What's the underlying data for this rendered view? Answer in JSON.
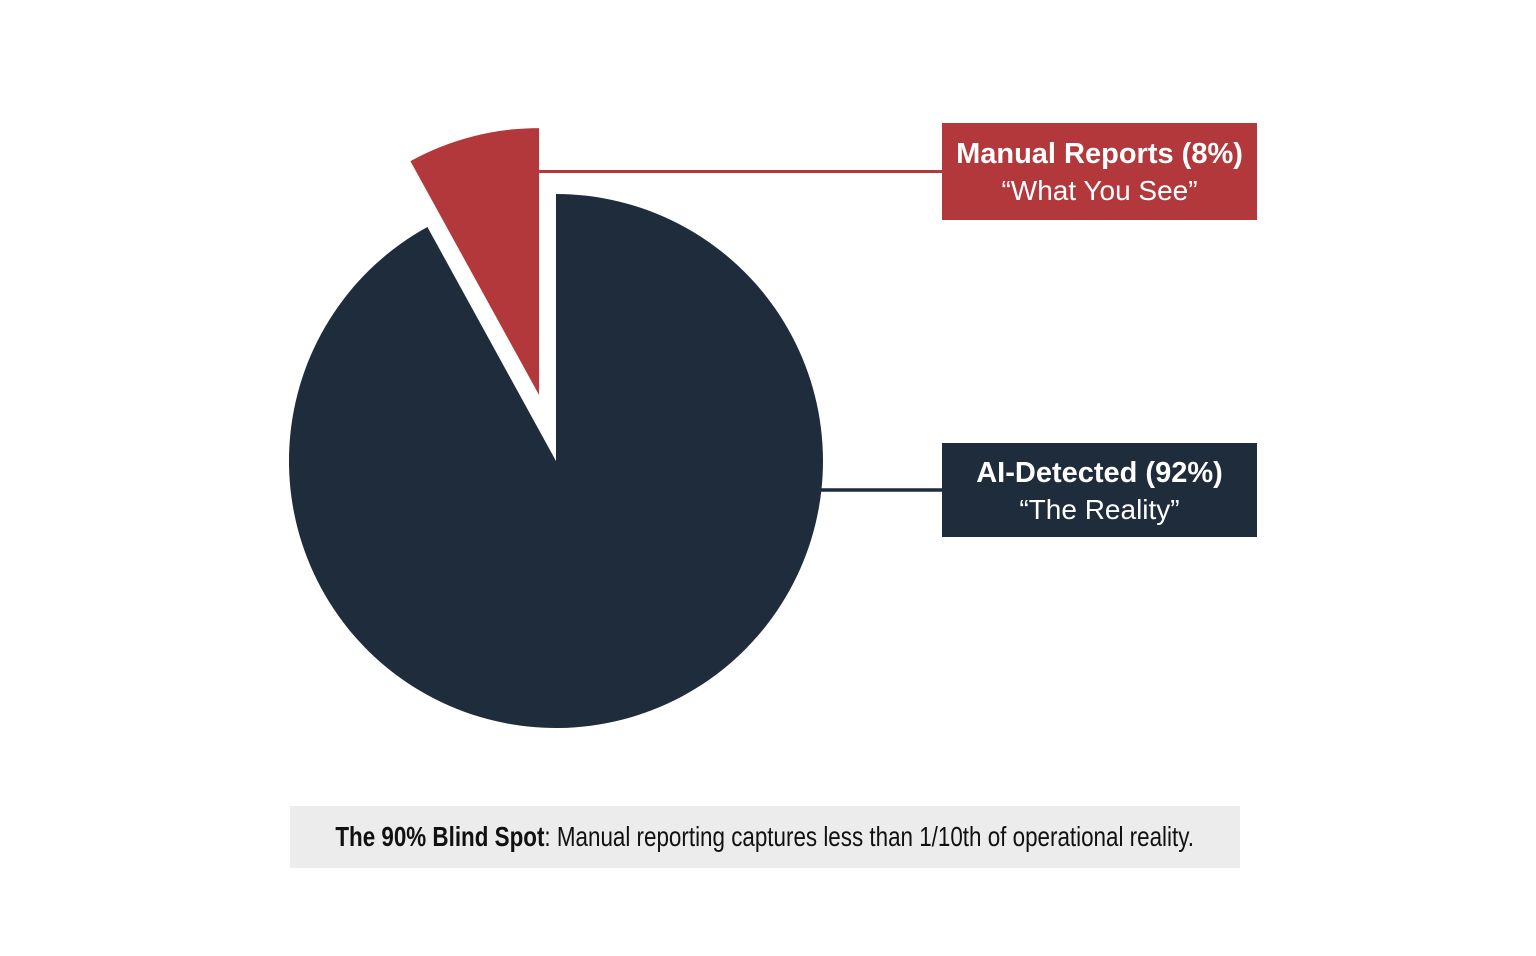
{
  "chart_data": {
    "type": "pie",
    "title": "",
    "legend_position": "none",
    "start_angle": 90,
    "direction": "clockwise",
    "explode_fraction": 0.255,
    "slices": [
      {
        "id": "ai-detected",
        "label": "AI-Detected",
        "value": 92,
        "unit": "%",
        "color": "#1F2C3B",
        "exploded": false,
        "callout_title": "AI-Detected (92%)",
        "callout_subtitle": "“The Reality”"
      },
      {
        "id": "manual-reports",
        "label": "Manual Reports",
        "value": 8,
        "unit": "%",
        "color": "#B2383B",
        "exploded": true,
        "callout_title": "Manual Reports (8%)",
        "callout_subtitle": "“What You See”"
      }
    ]
  },
  "caption": {
    "bold": "The 90% Blind Spot",
    "rest": ": Manual reporting captures less than 1/10th of operational reality.",
    "bg_color": "#ECECEC",
    "text_color": "#111111"
  },
  "page": {
    "background": "#FFFFFF",
    "callout_text_color": "#FFFFFF"
  }
}
